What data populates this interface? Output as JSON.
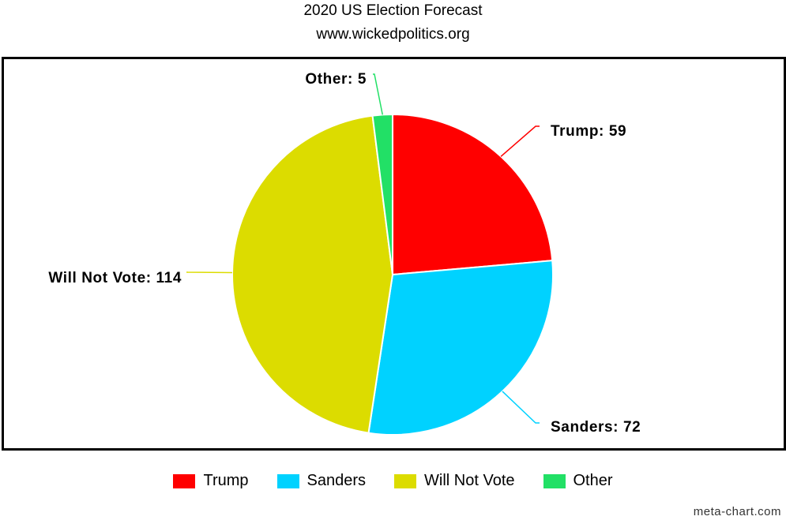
{
  "chart_data": {
    "type": "pie",
    "title": "2020 US Election Forecast",
    "subtitle": "www.wickedpolitics.org",
    "categories": [
      "Trump",
      "Sanders",
      "Will Not Vote",
      "Other"
    ],
    "values": [
      59,
      72,
      114,
      5
    ],
    "colors": [
      "#ff0000",
      "#00d2ff",
      "#dcdc00",
      "#22e066"
    ],
    "data_labels": [
      "Trump: 59",
      "Sanders: 72",
      "Will Not Vote: 114",
      "Other: 5"
    ],
    "legend_position": "bottom"
  },
  "legend": {
    "items": [
      {
        "label": "Trump",
        "color": "#ff0000"
      },
      {
        "label": "Sanders",
        "color": "#00d2ff"
      },
      {
        "label": "Will Not Vote",
        "color": "#dcdc00"
      },
      {
        "label": "Other",
        "color": "#22e066"
      }
    ]
  },
  "credit": "meta-chart.com"
}
